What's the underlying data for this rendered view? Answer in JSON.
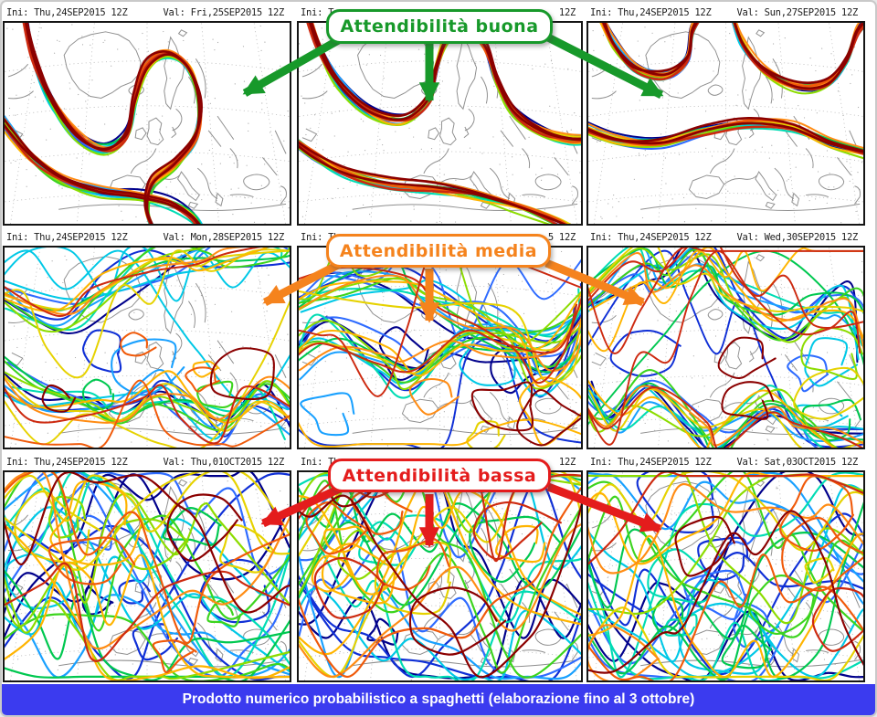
{
  "panels": [
    {
      "ini": "Ini: Thu,24SEP2015 12Z",
      "val": "Val: Fri,25SEP2015 12Z",
      "spread": "low"
    },
    {
      "ini": "Ini: T",
      "val": "12Z",
      "spread": "low"
    },
    {
      "ini": "Ini: Thu,24SEP2015 12Z",
      "val": "Val: Sun,27SEP2015 12Z",
      "spread": "low"
    },
    {
      "ini": "Ini: Thu,24SEP2015 12Z",
      "val": "Val: Mon,28SEP2015 12Z",
      "spread": "medium"
    },
    {
      "ini": "Ini: Th",
      "val": "5 12Z",
      "spread": "medium"
    },
    {
      "ini": "Ini: Thu,24SEP2015 12Z",
      "val": "Val: Wed,30SEP2015 12Z",
      "spread": "medium"
    },
    {
      "ini": "Ini: Thu,24SEP2015 12Z",
      "val": "Val: Thu,01OCT2015 12Z",
      "spread": "high"
    },
    {
      "ini": "Ini: Th",
      "val": "12Z",
      "spread": "high"
    },
    {
      "ini": "Ini: Thu,24SEP2015 12Z",
      "val": "Val: Sat,03OCT2015 12Z",
      "spread": "high"
    }
  ],
  "annotations": [
    {
      "id": "buona",
      "label": "Attendibilità buona",
      "color": "#17992a"
    },
    {
      "id": "media",
      "label": "Attendibilità media",
      "color": "#f5831d"
    },
    {
      "id": "bassa",
      "label": "Attendibilità bassa",
      "color": "#e41c1c"
    }
  ],
  "footer": {
    "label": "Prodotto numerico probabilistico a spaghetti (elaborazione fino al 3 ottobre)",
    "bg": "#3b3bef",
    "text_color": "#ffffff"
  },
  "ensemble_palette": [
    "#00008b",
    "#0f2fd6",
    "#2e6bff",
    "#18a0ff",
    "#00c8e6",
    "#00dcb4",
    "#00c850",
    "#3cd41e",
    "#8cdc00",
    "#e6d200",
    "#ffb400",
    "#ff8c14",
    "#f05a0a",
    "#cd2a10",
    "#8b0000"
  ],
  "map_colors": {
    "coastline": "#8f8f8f",
    "graticule": "#b2b2b2",
    "frame": "#151515"
  }
}
